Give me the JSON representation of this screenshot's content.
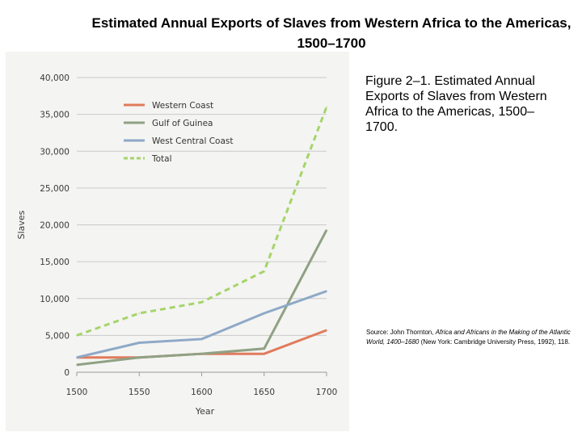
{
  "slide": {
    "title": "Estimated Annual Exports of Slaves from Western Africa to the Americas, 1500–1700",
    "caption": "Figure 2–1. Estimated Annual Exports of Slaves from Western Africa to the Americas, 1500–1700.",
    "source": {
      "prefix": "Source: John Thornton, ",
      "title": "Africa and Africans in the Making of the Atlantic World, 1400–1680",
      "suffix": " (New York: Cambridge University Press, 1992), 118."
    }
  },
  "chart_data": {
    "type": "line",
    "title": "Estimated Annual Exports of Slaves from Western Africa to the Americas, 1500–1700",
    "xlabel": "Year",
    "ylabel": "Slaves",
    "x": [
      1500,
      1550,
      1600,
      1650,
      1700
    ],
    "x_tick_labels": [
      "1500",
      "1550",
      "1600",
      "1650",
      "1700"
    ],
    "ylim": [
      0,
      40000
    ],
    "y_ticks": [
      0,
      5000,
      10000,
      15000,
      20000,
      25000,
      30000,
      35000,
      40000
    ],
    "y_tick_labels": [
      "0",
      "5,000",
      "10,000",
      "15,000",
      "20,000",
      "25,000",
      "30,000",
      "35,000",
      "40,000"
    ],
    "grid": true,
    "legend_position": "top-left",
    "series": [
      {
        "name": "Western Coast",
        "color": "#e07b5c",
        "dashed": false,
        "values": [
          2000,
          2000,
          2500,
          2500,
          5700
        ]
      },
      {
        "name": "Gulf of Guinea",
        "color": "#8fa184",
        "dashed": false,
        "values": [
          1000,
          2000,
          2500,
          3200,
          19300
        ]
      },
      {
        "name": "West Central Coast",
        "color": "#8ea9c7",
        "dashed": false,
        "values": [
          2000,
          4000,
          4500,
          8000,
          11000
        ]
      },
      {
        "name": "Total",
        "color": "#a5d46a",
        "dashed": true,
        "values": [
          5000,
          8000,
          9500,
          13700,
          36000
        ]
      }
    ]
  }
}
